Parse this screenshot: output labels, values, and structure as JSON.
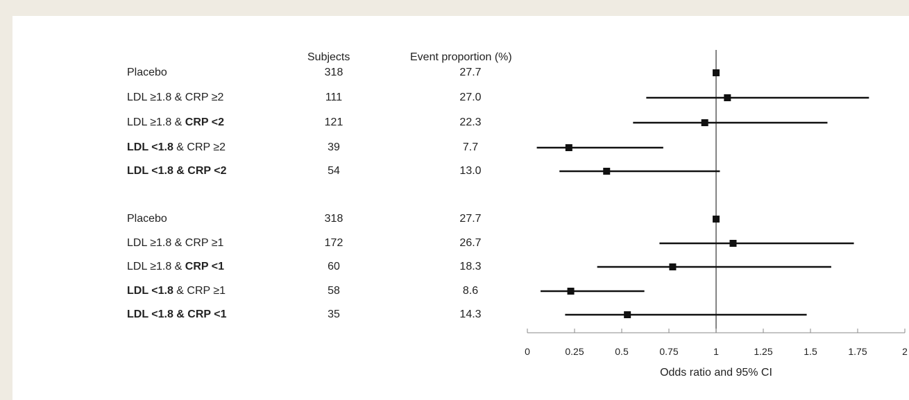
{
  "chart_data": {
    "type": "forest",
    "columns": {
      "subjects": "Subjects",
      "event_proportion": "Event proportion (%)"
    },
    "xlabel": "Odds ratio and 95% CI",
    "xlim": [
      0,
      2
    ],
    "xticks": [
      "0",
      "0.25",
      "0.5",
      "0.75",
      "1",
      "1.25",
      "1.5",
      "1.75",
      "2"
    ],
    "reference_line": 1,
    "groups": [
      {
        "rows": [
          {
            "label_parts": [
              {
                "text": "Placebo",
                "bold": false
              }
            ],
            "subjects": "318",
            "event_proportion": "27.7",
            "or": 1.0,
            "ci_low": 1.0,
            "ci_high": 1.0
          },
          {
            "label_parts": [
              {
                "text": "LDL ≥1.8 & CRP ≥2",
                "bold": false
              }
            ],
            "subjects": "111",
            "event_proportion": "27.0",
            "or": 1.06,
            "ci_low": 0.63,
            "ci_high": 1.81
          },
          {
            "label_parts": [
              {
                "text": "LDL ≥1.8 & ",
                "bold": false
              },
              {
                "text": "CRP <2",
                "bold": true
              }
            ],
            "subjects": "121",
            "event_proportion": "22.3",
            "or": 0.94,
            "ci_low": 0.56,
            "ci_high": 1.59
          },
          {
            "label_parts": [
              {
                "text": "LDL <1.8",
                "bold": true
              },
              {
                "text": " & CRP ≥2",
                "bold": false
              }
            ],
            "subjects": "39",
            "event_proportion": "7.7",
            "or": 0.22,
            "ci_low": 0.05,
            "ci_high": 0.72
          },
          {
            "label_parts": [
              {
                "text": "LDL <1.8 & CRP <2",
                "bold": true
              }
            ],
            "subjects": "54",
            "event_proportion": "13.0",
            "or": 0.42,
            "ci_low": 0.17,
            "ci_high": 1.02
          }
        ]
      },
      {
        "rows": [
          {
            "label_parts": [
              {
                "text": "Placebo",
                "bold": false
              }
            ],
            "subjects": "318",
            "event_proportion": "27.7",
            "or": 1.0,
            "ci_low": 1.0,
            "ci_high": 1.0
          },
          {
            "label_parts": [
              {
                "text": "LDL ≥1.8 & CRP ≥1",
                "bold": false
              }
            ],
            "subjects": "172",
            "event_proportion": "26.7",
            "or": 1.09,
            "ci_low": 0.7,
            "ci_high": 1.73
          },
          {
            "label_parts": [
              {
                "text": "LDL ≥1.8 & ",
                "bold": false
              },
              {
                "text": "CRP <1",
                "bold": true
              }
            ],
            "subjects": "60",
            "event_proportion": "18.3",
            "or": 0.77,
            "ci_low": 0.37,
            "ci_high": 1.61
          },
          {
            "label_parts": [
              {
                "text": "LDL <1.8",
                "bold": true
              },
              {
                "text": " & CRP ≥1",
                "bold": false
              }
            ],
            "subjects": "58",
            "event_proportion": "8.6",
            "or": 0.23,
            "ci_low": 0.07,
            "ci_high": 0.62
          },
          {
            "label_parts": [
              {
                "text": "LDL <1.8 & CRP <1",
                "bold": true
              }
            ],
            "subjects": "35",
            "event_proportion": "14.3",
            "or": 0.53,
            "ci_low": 0.2,
            "ci_high": 1.48
          }
        ]
      }
    ]
  }
}
